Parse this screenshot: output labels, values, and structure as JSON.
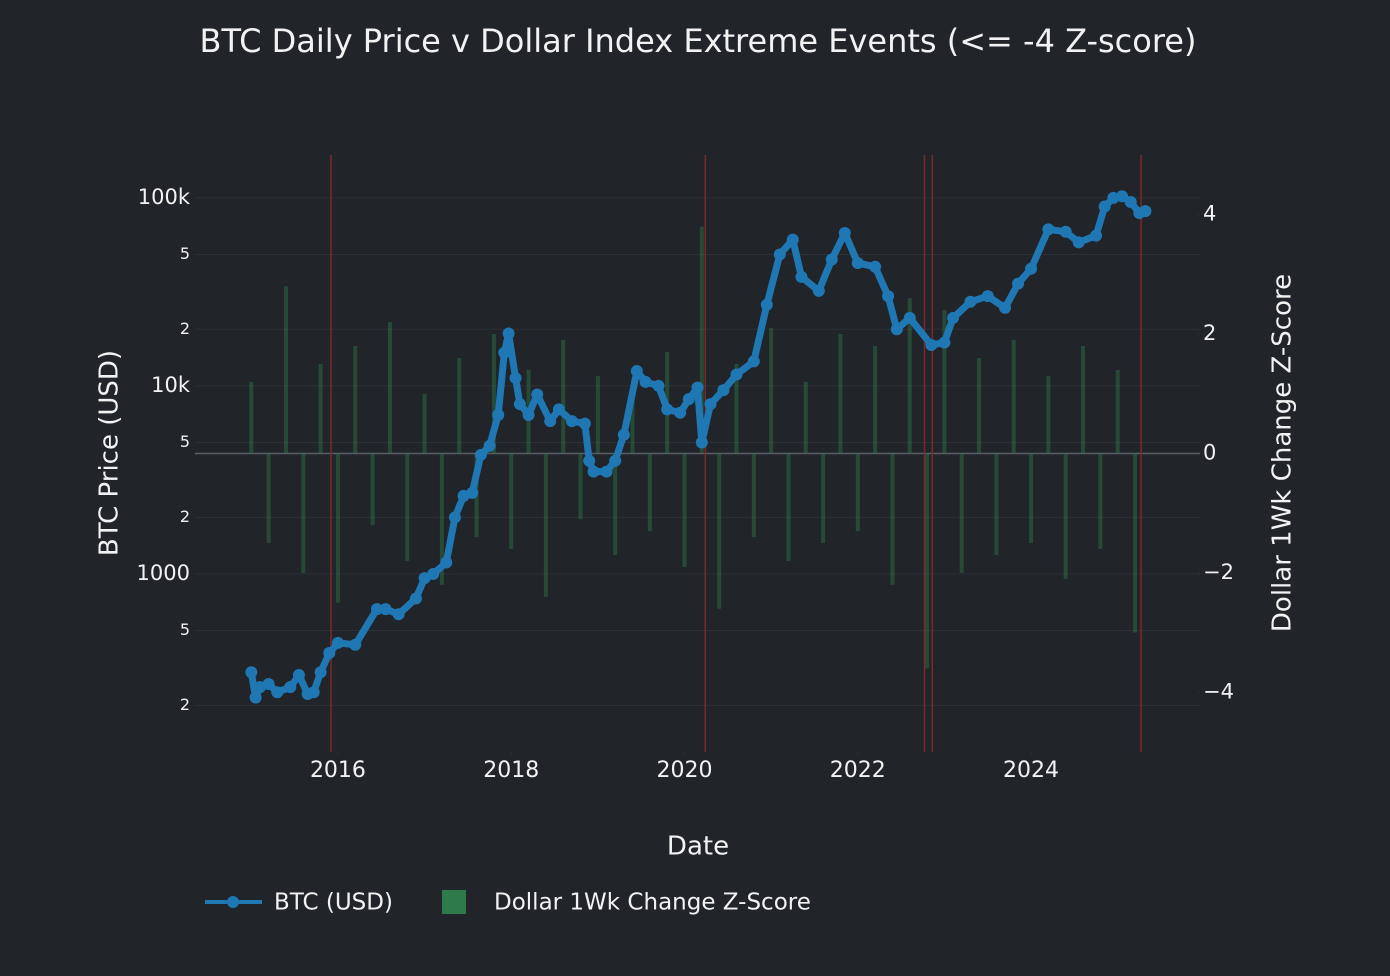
{
  "chart_data": {
    "type": "line",
    "title": "BTC Daily Price v Dollar Index Extreme Events (<= -4 Z-score)",
    "x_label": "Date",
    "y_label": "BTC Price (USD)",
    "y2_label": "Dollar 1Wk Change Z-Score",
    "legend": "bottom-left",
    "ylog": true,
    "grid": true,
    "xlim": [
      2014.35,
      2025.95
    ],
    "xticks": [
      2016,
      2018,
      2020,
      2022,
      2024
    ],
    "ylim": [
      113,
      169000
    ],
    "yticks": [
      {
        "value": 200,
        "label": "2"
      },
      {
        "value": 500,
        "label": "5"
      },
      1000,
      {
        "value": 2000,
        "label": "2"
      },
      {
        "value": 5000,
        "label": "5"
      },
      {
        "value": 10000,
        "label": "10k"
      },
      {
        "value": 20000,
        "label": "2"
      },
      {
        "value": 50000,
        "label": "5"
      },
      {
        "value": 100000,
        "label": "100k"
      }
    ],
    "y2lim": [
      -5,
      5
    ],
    "y2ticks": [
      {
        "value": -4,
        "label": "−4"
      },
      {
        "value": -2,
        "label": "−2"
      },
      0,
      2,
      4
    ],
    "event_lines": [
      2015.92,
      2020.24,
      2022.77,
      2022.86,
      2025.27
    ],
    "event_color": "#7a2a2a",
    "series": [
      {
        "name": "BTC (USD)",
        "type": "line",
        "color": "#1f77b4",
        "x": [
          2015.0,
          2015.05,
          2015.1,
          2015.2,
          2015.3,
          2015.45,
          2015.55,
          2015.65,
          2015.72,
          2015.8,
          2015.9,
          2016.0,
          2016.2,
          2016.45,
          2016.55,
          2016.7,
          2016.9,
          2017.0,
          2017.1,
          2017.25,
          2017.35,
          2017.45,
          2017.55,
          2017.65,
          2017.75,
          2017.85,
          2017.92,
          2017.97,
          2018.05,
          2018.1,
          2018.2,
          2018.3,
          2018.45,
          2018.55,
          2018.7,
          2018.85,
          2018.9,
          2018.95,
          2019.1,
          2019.2,
          2019.3,
          2019.45,
          2019.55,
          2019.7,
          2019.8,
          2019.95,
          2020.05,
          2020.15,
          2020.2,
          2020.3,
          2020.45,
          2020.6,
          2020.8,
          2020.95,
          2021.1,
          2021.25,
          2021.35,
          2021.55,
          2021.7,
          2021.85,
          2022.0,
          2022.2,
          2022.35,
          2022.45,
          2022.6,
          2022.85,
          2023.0,
          2023.1,
          2023.3,
          2023.5,
          2023.7,
          2023.85,
          2024.0,
          2024.2,
          2024.4,
          2024.55,
          2024.75,
          2024.85,
          2024.95,
          2025.05,
          2025.15,
          2025.25,
          2025.32
        ],
        "values": [
          300,
          220,
          250,
          260,
          235,
          250,
          290,
          230,
          235,
          300,
          380,
          430,
          420,
          650,
          650,
          610,
          740,
          950,
          1000,
          1150,
          2000,
          2600,
          2700,
          4300,
          4800,
          7000,
          15000,
          19000,
          11000,
          8000,
          7000,
          9000,
          6500,
          7500,
          6500,
          6300,
          4000,
          3500,
          3500,
          4000,
          5500,
          12000,
          10500,
          10000,
          7500,
          7200,
          8500,
          9800,
          5000,
          8000,
          9500,
          11500,
          13500,
          27000,
          50000,
          60000,
          38000,
          32000,
          47000,
          65000,
          45000,
          43000,
          30000,
          20000,
          23000,
          16500,
          17000,
          23000,
          28000,
          30000,
          26000,
          35000,
          42000,
          68000,
          66000,
          58000,
          63000,
          90000,
          100000,
          102000,
          95000,
          83000,
          85000
        ]
      },
      {
        "name": "Dollar 1Wk Change Z-Score",
        "type": "bar",
        "axis": "y2",
        "color": "#2f7a4a",
        "x": [
          2015.0,
          2015.2,
          2015.4,
          2015.6,
          2015.8,
          2016.0,
          2016.2,
          2016.4,
          2016.6,
          2016.8,
          2017.0,
          2017.2,
          2017.4,
          2017.6,
          2017.8,
          2018.0,
          2018.2,
          2018.4,
          2018.6,
          2018.8,
          2019.0,
          2019.2,
          2019.4,
          2019.6,
          2019.8,
          2020.0,
          2020.2,
          2020.4,
          2020.6,
          2020.8,
          2021.0,
          2021.2,
          2021.4,
          2021.6,
          2021.8,
          2022.0,
          2022.2,
          2022.4,
          2022.6,
          2022.8,
          2023.0,
          2023.2,
          2023.4,
          2023.6,
          2023.8,
          2024.0,
          2024.2,
          2024.4,
          2024.6,
          2024.8,
          2025.0,
          2025.2
        ],
        "values": [
          1.2,
          -1.5,
          2.8,
          -2.0,
          1.5,
          -2.5,
          1.8,
          -1.2,
          2.2,
          -1.8,
          1.0,
          -2.2,
          1.6,
          -1.4,
          2.0,
          -1.6,
          1.4,
          -2.4,
          1.9,
          -1.1,
          1.3,
          -1.7,
          1.1,
          -1.3,
          1.7,
          -1.9,
          3.8,
          -2.6,
          1.5,
          -1.4,
          2.1,
          -1.8,
          1.2,
          -1.5,
          2.0,
          -1.3,
          1.8,
          -2.2,
          2.6,
          -3.6,
          2.4,
          -2.0,
          1.6,
          -1.7,
          1.9,
          -1.5,
          1.3,
          -2.1,
          1.8,
          -1.6,
          1.4,
          -3.0
        ]
      }
    ]
  }
}
